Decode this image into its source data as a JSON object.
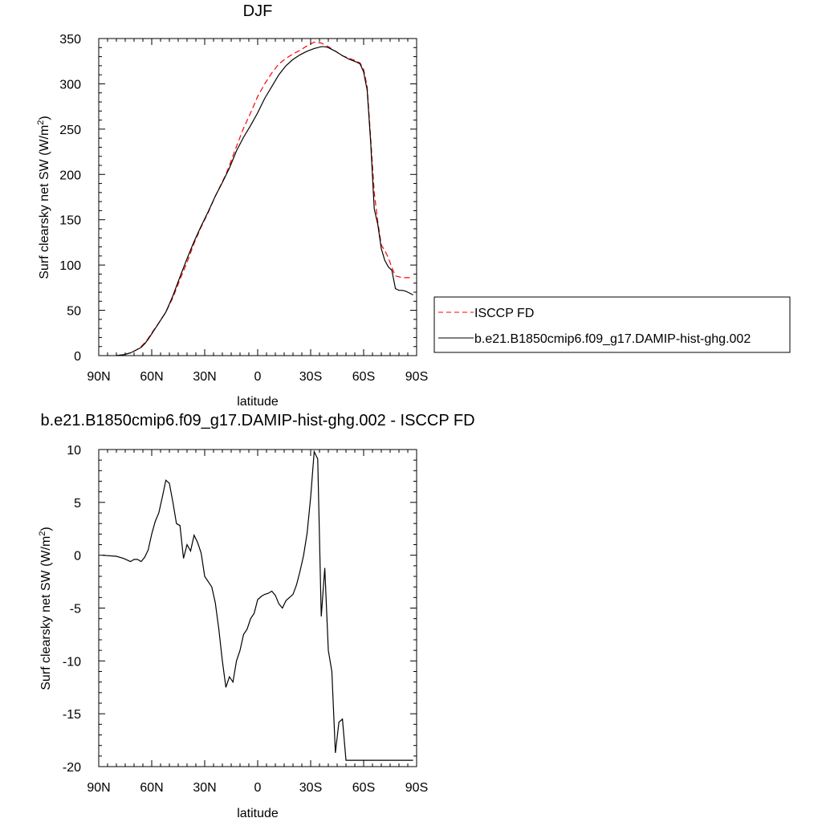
{
  "chart_data": [
    {
      "type": "line",
      "title": "DJF",
      "xlabel": "latitude",
      "ylabel": "Surf clearsky net SW (W/m",
      "ylabel_sup": "2",
      "ylabel_end": ")",
      "xlim": [
        90,
        -90
      ],
      "ylim": [
        0,
        350
      ],
      "xticks": [
        {
          "v": 90,
          "label": "90N"
        },
        {
          "v": 60,
          "label": "60N"
        },
        {
          "v": 30,
          "label": "30N"
        },
        {
          "v": 0,
          "label": "0"
        },
        {
          "v": -30,
          "label": "30S"
        },
        {
          "v": -60,
          "label": "60S"
        },
        {
          "v": -90,
          "label": "90S"
        }
      ],
      "yticks": [
        {
          "v": 0,
          "label": "0"
        },
        {
          "v": 50,
          "label": "50"
        },
        {
          "v": 100,
          "label": "100"
        },
        {
          "v": 150,
          "label": "150"
        },
        {
          "v": 200,
          "label": "200"
        },
        {
          "v": 250,
          "label": "250"
        },
        {
          "v": 300,
          "label": "300"
        },
        {
          "v": 350,
          "label": "350"
        }
      ],
      "legend_position": "right",
      "series": [
        {
          "name": "ISCCP FD",
          "color": "#ff0000",
          "dashed": true,
          "x": [
            80,
            76,
            72,
            70,
            68,
            66,
            64,
            62,
            60,
            56,
            52,
            48,
            44,
            40,
            36,
            32,
            28,
            24,
            20,
            18,
            16,
            12,
            8,
            4,
            0,
            -4,
            -8,
            -12,
            -16,
            -20,
            -24,
            -28,
            -32,
            -36,
            -38,
            -40,
            -44,
            -48,
            -52,
            -56,
            -58,
            -60,
            -62,
            -64,
            -66,
            -68,
            -70,
            -72,
            -74,
            -76,
            -78,
            -80,
            -82,
            -84,
            -86,
            -88
          ],
          "y": [
            0,
            1,
            3,
            5,
            7,
            10,
            14,
            19,
            25,
            36,
            48,
            64,
            84,
            103,
            124,
            142,
            158,
            176,
            192,
            200,
            210,
            231,
            251,
            268,
            286,
            300,
            312,
            322,
            328,
            333,
            337,
            342,
            346,
            345,
            343,
            341,
            336,
            331,
            328,
            325,
            323,
            316,
            297,
            240,
            180,
            148,
            122,
            116,
            108,
            97,
            88,
            87,
            86,
            86,
            86,
            86
          ]
        },
        {
          "name": "b.e21.B1850cmip6.f09_g17.DAMIP-hist-ghg.002",
          "color": "#000000",
          "dashed": false,
          "x": [
            80,
            76,
            72,
            70,
            68,
            66,
            64,
            62,
            60,
            56,
            52,
            48,
            44,
            40,
            36,
            32,
            28,
            24,
            20,
            18,
            16,
            12,
            8,
            4,
            0,
            -4,
            -8,
            -12,
            -16,
            -20,
            -24,
            -28,
            -32,
            -36,
            -38,
            -40,
            -44,
            -48,
            -52,
            -56,
            -58,
            -60,
            -62,
            -64,
            -66,
            -68,
            -70,
            -72,
            -74,
            -76,
            -78,
            -80,
            -82,
            -84,
            -86,
            -88
          ],
          "y": [
            0,
            1,
            3,
            5,
            7,
            9,
            13,
            18,
            24,
            36,
            48,
            66,
            87,
            107,
            126,
            143,
            159,
            176,
            191,
            199,
            207,
            226,
            241,
            254,
            268,
            284,
            297,
            310,
            320,
            327,
            332,
            336,
            339,
            341,
            341,
            340,
            336,
            331,
            327,
            324,
            322,
            313,
            293,
            235,
            162,
            145,
            118,
            105,
            98,
            94,
            74,
            72,
            72,
            71,
            69,
            67
          ]
        }
      ]
    },
    {
      "type": "line",
      "title": "b.e21.B1850cmip6.f09_g17.DAMIP-hist-ghg.002 - ISCCP FD",
      "xlabel": "latitude",
      "ylabel": "Surf clearsky net SW (W/m",
      "ylabel_sup": "2",
      "ylabel_end": ")",
      "xlim": [
        90,
        -90
      ],
      "ylim": [
        -20,
        10
      ],
      "xticks": [
        {
          "v": 90,
          "label": "90N"
        },
        {
          "v": 60,
          "label": "60N"
        },
        {
          "v": 30,
          "label": "30N"
        },
        {
          "v": 0,
          "label": "0"
        },
        {
          "v": -30,
          "label": "30S"
        },
        {
          "v": -60,
          "label": "60S"
        },
        {
          "v": -90,
          "label": "90S"
        }
      ],
      "yticks": [
        {
          "v": -20,
          "label": "-20"
        },
        {
          "v": -15,
          "label": "-15"
        },
        {
          "v": -10,
          "label": "-10"
        },
        {
          "v": -5,
          "label": "-5"
        },
        {
          "v": 0,
          "label": "0"
        },
        {
          "v": 5,
          "label": "5"
        },
        {
          "v": 10,
          "label": "10"
        }
      ],
      "series": [
        {
          "name": "",
          "color": "#000000",
          "dashed": false,
          "x": [
            88,
            80,
            76,
            72,
            70,
            68,
            66,
            64,
            62,
            60,
            58,
            56,
            54,
            52,
            50,
            48,
            46,
            44,
            42,
            40,
            38,
            36,
            34,
            32,
            30,
            28,
            26,
            24,
            22,
            20,
            18,
            16,
            14,
            12,
            10,
            8,
            6,
            4,
            2,
            0,
            -2,
            -4,
            -6,
            -8,
            -10,
            -12,
            -14,
            -16,
            -18,
            -20,
            -22,
            -24,
            -26,
            -28,
            -30,
            -32,
            -34,
            -36,
            -38,
            -40,
            -42,
            -44,
            -46,
            -48,
            -50,
            -52,
            -54,
            -56,
            -58,
            -60,
            -62,
            -64,
            -66,
            -68,
            -70,
            -72,
            -74,
            -76,
            -78,
            -80,
            -82,
            -84,
            -86,
            -88
          ],
          "y": [
            0,
            -0.1,
            -0.3,
            -0.6,
            -0.4,
            -0.4,
            -0.6,
            -0.2,
            0.5,
            2.0,
            3.2,
            4.0,
            5.5,
            7.1,
            6.8,
            5.0,
            3.0,
            2.8,
            -0.3,
            1.0,
            0.4,
            1.9,
            1.2,
            0.2,
            -2.0,
            -2.5,
            -3.0,
            -4.5,
            -7.0,
            -10.0,
            -12.5,
            -11.5,
            -12.0,
            -10.0,
            -9.0,
            -7.5,
            -7.0,
            -6.0,
            -5.5,
            -4.2,
            -3.9,
            -3.7,
            -3.6,
            -3.4,
            -3.8,
            -4.6,
            -5.0,
            -4.3,
            -4.0,
            -3.7,
            -2.8,
            -1.5,
            0.0,
            2.1,
            5.5,
            9.8,
            9.1,
            -5.8,
            -1.2,
            -9.0,
            -11.0,
            -18.7,
            -15.8,
            -15.5,
            -19.4,
            -19.4,
            -19.4,
            -19.4,
            -19.4,
            -19.4,
            -19.4,
            -19.4,
            -19.4,
            -19.4,
            -19.4,
            -19.4,
            -19.4,
            -19.4,
            -19.4,
            -19.4,
            -19.4,
            -19.4,
            -19.4,
            -19.4
          ]
        }
      ]
    }
  ]
}
